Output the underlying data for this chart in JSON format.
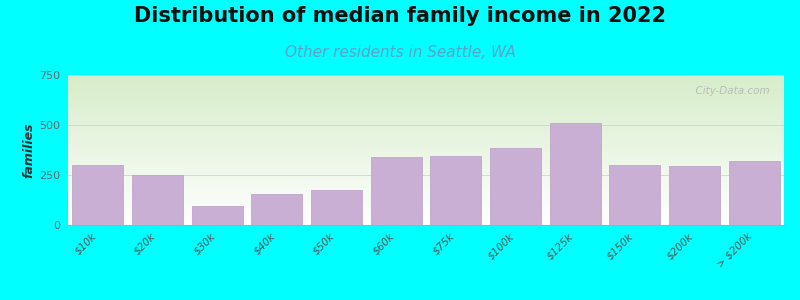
{
  "title": "Distribution of median family income in 2022",
  "subtitle": "Other residents in Seattle, WA",
  "ylabel": "families",
  "background_outer": "#00FFFF",
  "gradient_top": "#d6edca",
  "gradient_bottom": "#ffffff",
  "bar_color": "#c9afd4",
  "bar_edge_color": "#b89ec4",
  "categories": [
    "$10k",
    "$20k",
    "$30k",
    "$40k",
    "$50k",
    "$60k",
    "$75k",
    "$100k",
    "$125k",
    "$150k",
    "$200k",
    "> $200k"
  ],
  "values": [
    300,
    250,
    95,
    155,
    175,
    340,
    345,
    385,
    510,
    300,
    295,
    320
  ],
  "ylim": [
    0,
    750
  ],
  "yticks": [
    0,
    250,
    500,
    750
  ],
  "title_fontsize": 15,
  "subtitle_fontsize": 11,
  "subtitle_color": "#5ba3c9",
  "watermark": "  City-Data.com"
}
